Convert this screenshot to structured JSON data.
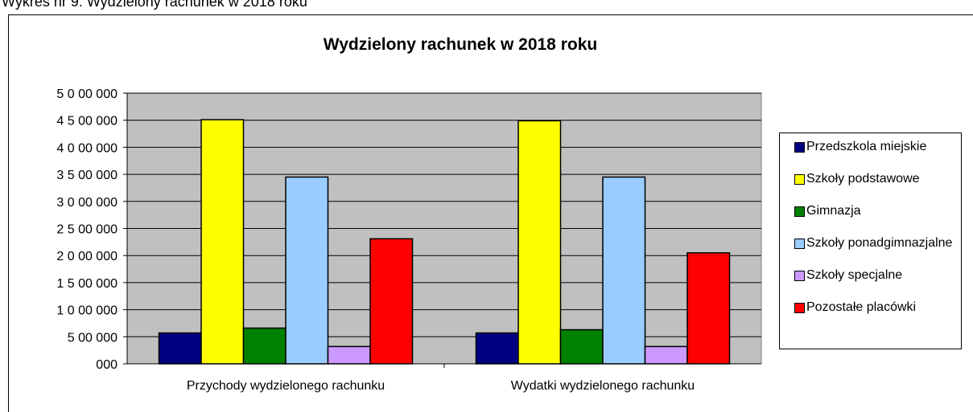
{
  "caption": "Wykres nr 9. Wydzielony rachunek w 2018 roku",
  "chart_data": {
    "type": "bar",
    "title": "Wydzielony rachunek w 2018 roku",
    "categories": [
      "Przychody wydzielonego rachunku",
      "Wydatki wydzielonego rachunku"
    ],
    "series": [
      {
        "name": "Przedszkola miejskie",
        "color": "#000080",
        "values": [
          570000,
          570000
        ]
      },
      {
        "name": "Szkoły podstawowe",
        "color": "#ffff00",
        "values": [
          4510000,
          4490000
        ]
      },
      {
        "name": "Gimnazja",
        "color": "#008000",
        "values": [
          660000,
          630000
        ]
      },
      {
        "name": "Szkoły ponadgimnazjalne",
        "color": "#99ccff",
        "values": [
          3450000,
          3450000
        ]
      },
      {
        "name": "Szkoły specjalne",
        "color": "#cc99ff",
        "values": [
          320000,
          320000
        ]
      },
      {
        "name": "Pozostałe placówki",
        "color": "#ff0000",
        "values": [
          2310000,
          2050000
        ]
      }
    ],
    "ylim": [
      0,
      5000000
    ],
    "yticks": [
      {
        "value": 0,
        "label": "000"
      },
      {
        "value": 500000,
        "label": "5 00 000"
      },
      {
        "value": 1000000,
        "label": "1 0 00 000"
      },
      {
        "value": 1500000,
        "label": "1 5 00 000"
      },
      {
        "value": 2000000,
        "label": "2 0 00 000"
      },
      {
        "value": 2500000,
        "label": "2 5 00 000"
      },
      {
        "value": 3000000,
        "label": "3 0 00 000"
      },
      {
        "value": 3500000,
        "label": "3 5 00 000"
      },
      {
        "value": 4000000,
        "label": "4 0 00 000"
      },
      {
        "value": 4500000,
        "label": "4 5 00 000"
      },
      {
        "value": 5000000,
        "label": "5 0 00 000"
      }
    ],
    "grid": true,
    "plot_background": "#c0c0c0",
    "legend": "right"
  }
}
